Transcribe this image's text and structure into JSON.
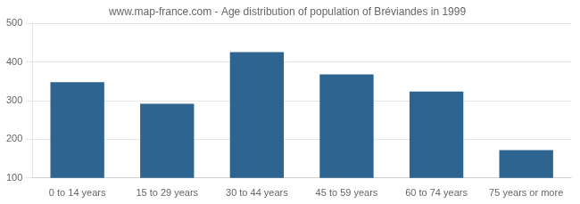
{
  "chart_data": {
    "type": "bar",
    "title": "www.map-france.com - Age distribution of population of Bréviandes in 1999",
    "categories": [
      "0 to 14 years",
      "15 to 29 years",
      "30 to 44 years",
      "45 to 59 years",
      "60 to 74 years",
      "75 years or more"
    ],
    "values": [
      348,
      292,
      426,
      368,
      324,
      172
    ],
    "color": "#2e6490",
    "ylim": [
      100,
      500
    ],
    "yticks": [
      100,
      200,
      300,
      400,
      500
    ],
    "grid": true
  }
}
